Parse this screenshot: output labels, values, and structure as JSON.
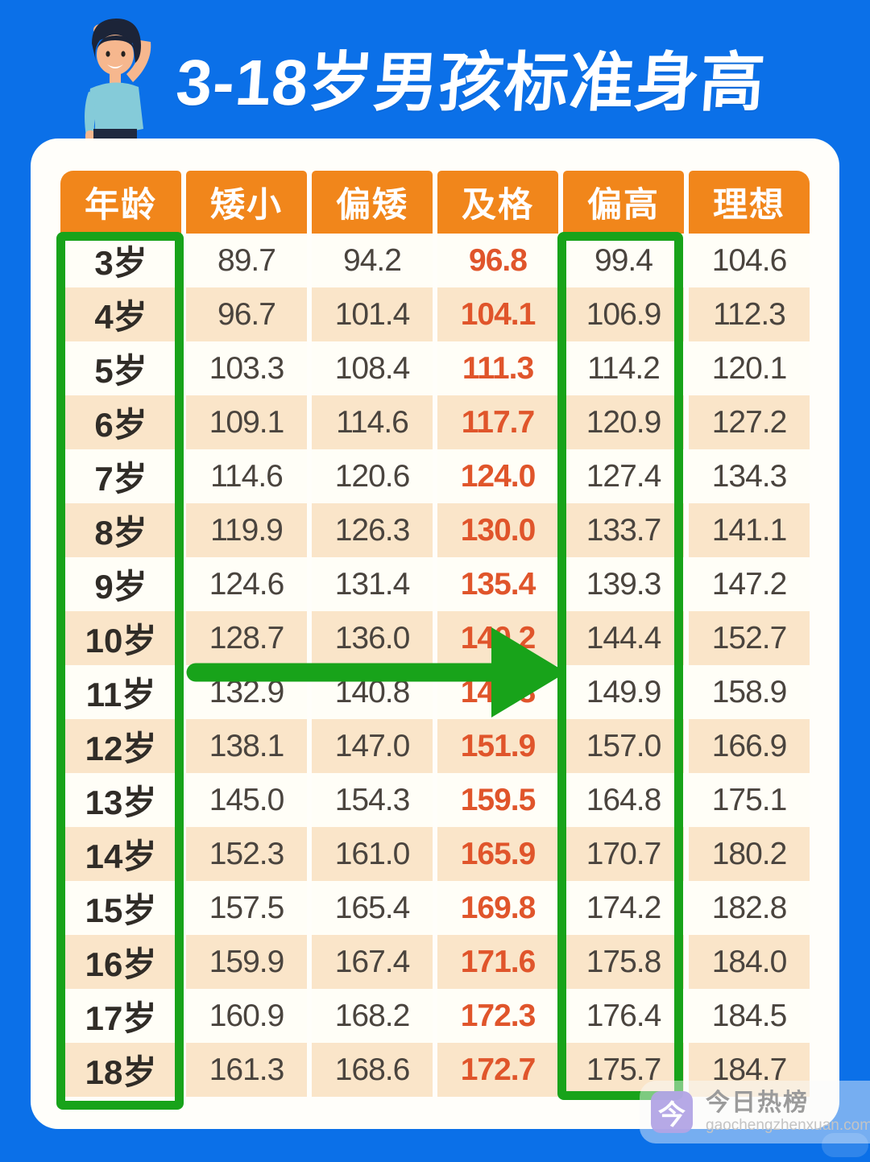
{
  "page": {
    "background_color": "#0B70E8",
    "header_orange": "#F1861B",
    "highlight_green": "#18A31A",
    "pass_text_color": "#E0552B"
  },
  "header": {
    "title": "3-18岁男孩标准身高",
    "illustration": "boy-measuring-height"
  },
  "table": {
    "columns": [
      "年龄",
      "矮小",
      "偏矮",
      "及格",
      "偏高",
      "理想"
    ],
    "rows": [
      {
        "age": "3岁",
        "values": [
          "89.7",
          "94.2",
          "96.8",
          "99.4",
          "104.6"
        ]
      },
      {
        "age": "4岁",
        "values": [
          "96.7",
          "101.4",
          "104.1",
          "106.9",
          "112.3"
        ]
      },
      {
        "age": "5岁",
        "values": [
          "103.3",
          "108.4",
          "111.3",
          "114.2",
          "120.1"
        ]
      },
      {
        "age": "6岁",
        "values": [
          "109.1",
          "114.6",
          "117.7",
          "120.9",
          "127.2"
        ]
      },
      {
        "age": "7岁",
        "values": [
          "114.6",
          "120.6",
          "124.0",
          "127.4",
          "134.3"
        ]
      },
      {
        "age": "8岁",
        "values": [
          "119.9",
          "126.3",
          "130.0",
          "133.7",
          "141.1"
        ]
      },
      {
        "age": "9岁",
        "values": [
          "124.6",
          "131.4",
          "135.4",
          "139.3",
          "147.2"
        ]
      },
      {
        "age": "10岁",
        "values": [
          "128.7",
          "136.0",
          "140.2",
          "144.4",
          "152.7"
        ]
      },
      {
        "age": "11岁",
        "values": [
          "132.9",
          "140.8",
          "145.3",
          "149.9",
          "158.9"
        ]
      },
      {
        "age": "12岁",
        "values": [
          "138.1",
          "147.0",
          "151.9",
          "157.0",
          "166.9"
        ]
      },
      {
        "age": "13岁",
        "values": [
          "145.0",
          "154.3",
          "159.5",
          "164.8",
          "175.1"
        ]
      },
      {
        "age": "14岁",
        "values": [
          "152.3",
          "161.0",
          "165.9",
          "170.7",
          "180.2"
        ]
      },
      {
        "age": "15岁",
        "values": [
          "157.5",
          "165.4",
          "169.8",
          "174.2",
          "182.8"
        ]
      },
      {
        "age": "16岁",
        "values": [
          "159.9",
          "167.4",
          "171.6",
          "175.8",
          "184.0"
        ]
      },
      {
        "age": "17岁",
        "values": [
          "160.9",
          "168.2",
          "172.3",
          "176.4",
          "184.5"
        ]
      },
      {
        "age": "18岁",
        "values": [
          "161.3",
          "168.6",
          "172.7",
          "175.7",
          "184.7"
        ]
      }
    ]
  },
  "annotations": {
    "highlighted_columns": [
      "年龄",
      "偏高"
    ],
    "highlight_color": "#18A31A"
  },
  "watermark": {
    "icon_glyph": "今",
    "brand": "今日热榜",
    "url": "gaochengzhenxuan.com"
  },
  "chart_data": {
    "type": "table",
    "title": "3-18岁男孩标准身高",
    "categories": [
      "3岁",
      "4岁",
      "5岁",
      "6岁",
      "7岁",
      "8岁",
      "9岁",
      "10岁",
      "11岁",
      "12岁",
      "13岁",
      "14岁",
      "15岁",
      "16岁",
      "17岁",
      "18岁"
    ],
    "series": [
      {
        "name": "矮小",
        "values": [
          89.7,
          96.7,
          103.3,
          109.1,
          114.6,
          119.9,
          124.6,
          128.7,
          132.9,
          138.1,
          145.0,
          152.3,
          157.5,
          159.9,
          160.9,
          161.3
        ]
      },
      {
        "name": "偏矮",
        "values": [
          94.2,
          101.4,
          108.4,
          114.6,
          120.6,
          126.3,
          131.4,
          136.0,
          140.8,
          147.0,
          154.3,
          161.0,
          165.4,
          167.4,
          168.2,
          168.6
        ]
      },
      {
        "name": "及格",
        "values": [
          96.8,
          104.1,
          111.3,
          117.7,
          124.0,
          130.0,
          135.4,
          140.2,
          145.3,
          151.9,
          159.5,
          165.9,
          169.8,
          171.6,
          172.3,
          172.7
        ]
      },
      {
        "name": "偏高",
        "values": [
          99.4,
          106.9,
          114.2,
          120.9,
          127.4,
          133.7,
          139.3,
          144.4,
          149.9,
          157.0,
          164.8,
          170.7,
          174.2,
          175.8,
          176.4,
          175.7
        ]
      },
      {
        "name": "理想",
        "values": [
          104.6,
          112.3,
          120.1,
          127.2,
          134.3,
          141.1,
          147.2,
          152.7,
          158.9,
          166.9,
          175.1,
          180.2,
          182.8,
          184.0,
          184.5,
          184.7
        ]
      }
    ]
  }
}
